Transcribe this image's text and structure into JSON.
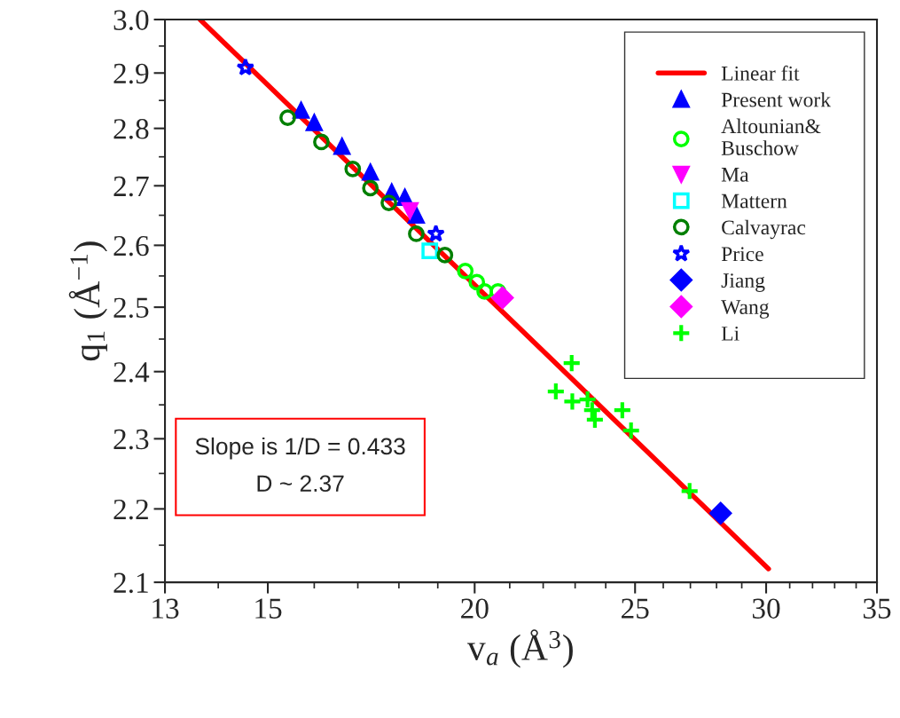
{
  "chart_data": {
    "type": "scatter",
    "xlabel": "v$_{a}$ (Å$^{3}$)",
    "ylabel": "q$_{1}$ (Å$^{−1}$)",
    "log": "xy",
    "xlim": [
      13,
      35
    ],
    "ylim": [
      2.1,
      3.0
    ],
    "xticks": [
      13,
      {
        "value": 14,
        "label": null
      },
      15,
      {
        "value": 16,
        "label": null
      },
      {
        "value": 17,
        "label": null
      },
      {
        "value": 18,
        "label": null
      },
      {
        "value": 19,
        "label": null
      },
      20,
      {
        "value": 21,
        "label": null
      },
      {
        "value": 22,
        "label": null
      },
      {
        "value": 23,
        "label": null
      },
      {
        "value": 24,
        "label": null
      },
      25,
      {
        "value": 26,
        "label": null
      },
      {
        "value": 27,
        "label": null
      },
      {
        "value": 28,
        "label": null
      },
      {
        "value": 29,
        "label": null
      },
      30,
      {
        "value": 31,
        "label": null
      },
      {
        "value": 32,
        "label": null
      },
      {
        "value": 33,
        "label": null
      },
      {
        "value": 34,
        "label": null
      },
      35
    ],
    "yticks": [
      {
        "value": 2.1,
        "label": "2.1"
      },
      {
        "value": 2.15,
        "label": null
      },
      {
        "value": 2.2,
        "label": "2.2"
      },
      {
        "value": 2.25,
        "label": null
      },
      {
        "value": 2.3,
        "label": "2.3"
      },
      {
        "value": 2.35,
        "label": null
      },
      {
        "value": 2.4,
        "label": "2.4"
      },
      {
        "value": 2.45,
        "label": null
      },
      {
        "value": 2.5,
        "label": "2.5"
      },
      {
        "value": 2.55,
        "label": null
      },
      {
        "value": 2.6,
        "label": "2.6"
      },
      {
        "value": 2.65,
        "label": null
      },
      {
        "value": 2.7,
        "label": "2.7"
      },
      {
        "value": 2.75,
        "label": null
      },
      {
        "value": 2.8,
        "label": "2.8"
      },
      {
        "value": 2.85,
        "label": null
      },
      {
        "value": 2.9,
        "label": "2.9"
      },
      {
        "value": 2.95,
        "label": null
      },
      {
        "value": 3.0,
        "label": "3.0"
      }
    ],
    "grid": false,
    "legend": "top right",
    "annotations": [
      "Slope is 1/D = 0.433",
      "D ~ 2.37"
    ],
    "series": [
      {
        "name": "Linear fit",
        "type": "line",
        "color": "#ff0000",
        "line_style": "solid",
        "x": [
          13.65,
          30.1
        ],
        "values": [
          3.0,
          2.118
        ]
      },
      {
        "name": "Present work",
        "marker": "triangle",
        "color": "#0000ff",
        "x": [
          15.71,
          16.0,
          16.63,
          17.3,
          17.82,
          18.15,
          18.44
        ],
        "values": [
          2.832,
          2.81,
          2.768,
          2.723,
          2.689,
          2.68,
          2.65
        ]
      },
      {
        "name": "Altounian&\nBuschow",
        "marker": "circle",
        "color": "#00ff00",
        "x": [
          19.74,
          20.06,
          20.28,
          20.66
        ],
        "values": [
          2.558,
          2.54,
          2.525,
          2.525
        ]
      },
      {
        "name": "Ma",
        "marker": "triangle_down",
        "color": "#ff00ff",
        "x": [
          18.28
        ],
        "values": [
          2.658
        ]
      },
      {
        "name": "Mattern",
        "marker": "square",
        "color": "#00ffff",
        "x": [
          18.79
        ],
        "values": [
          2.591
        ]
      },
      {
        "name": "Calvayrac",
        "marker": "circle",
        "color": "#007f00",
        "x": [
          15.42,
          16.16,
          16.88,
          17.3,
          17.75,
          18.44,
          19.19
        ],
        "values": [
          2.819,
          2.776,
          2.729,
          2.696,
          2.671,
          2.619,
          2.584
        ]
      },
      {
        "name": "Price",
        "marker": "star",
        "color": "#0000ff",
        "x": [
          14.54,
          18.95
        ],
        "values": [
          2.91,
          2.619
        ]
      },
      {
        "name": "Jiang",
        "marker": "diamond",
        "color": "#0000ff",
        "x": [
          28.16
        ],
        "values": [
          2.194
        ]
      },
      {
        "name": "Wang",
        "marker": "diamond",
        "color": "#ff00ff",
        "x": [
          20.79
        ],
        "values": [
          2.515
        ]
      },
      {
        "name": "Li",
        "marker": "cross",
        "color": "#00ff00",
        "x": [
          22.89,
          22.39,
          22.91,
          23.4,
          23.55,
          23.64,
          24.56,
          24.86,
          26.97
        ],
        "values": [
          2.413,
          2.37,
          2.355,
          2.358,
          2.342,
          2.328,
          2.342,
          2.312,
          2.225
        ]
      }
    ]
  }
}
